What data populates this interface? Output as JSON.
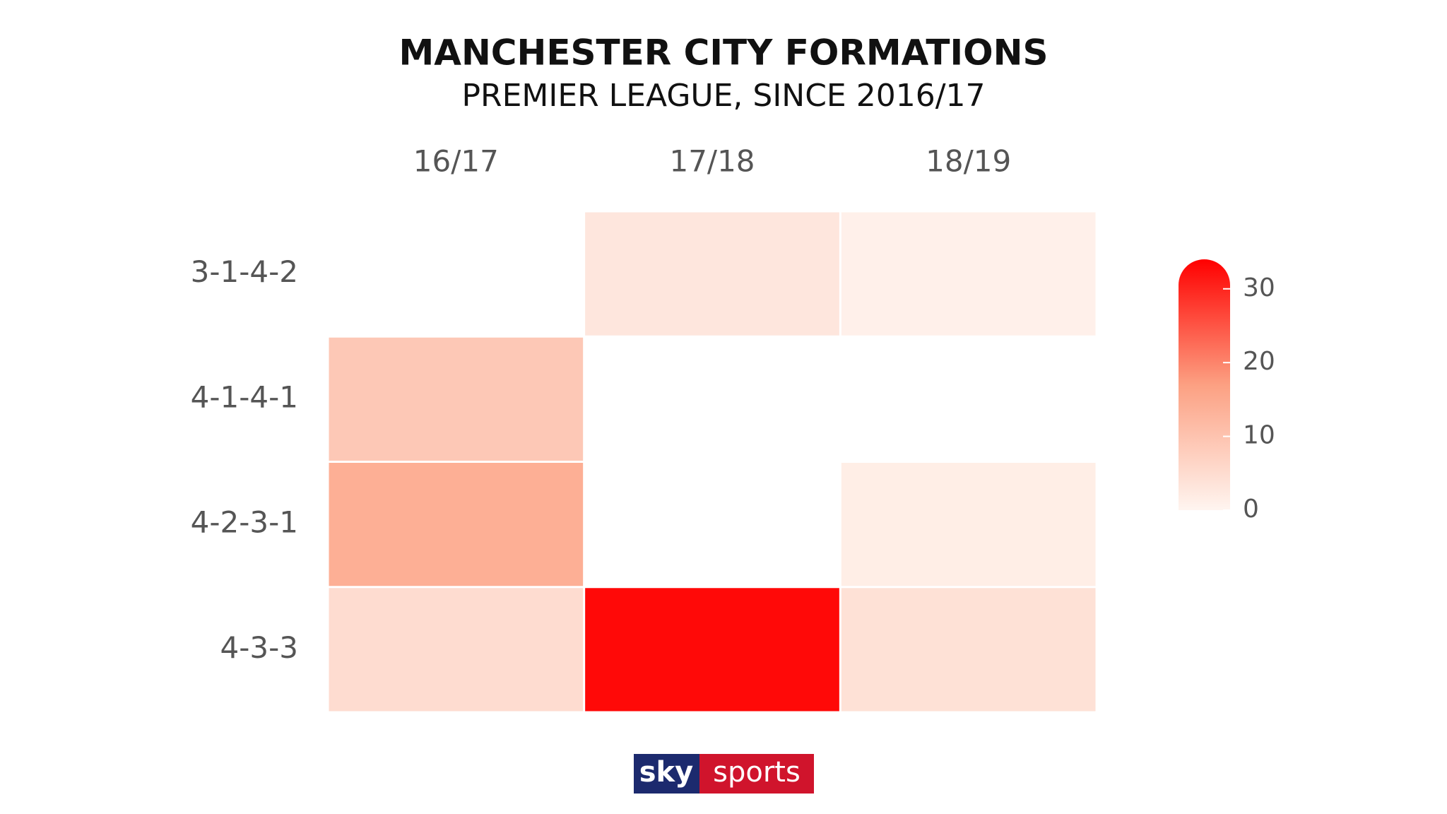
{
  "chart_data": {
    "type": "heatmap",
    "title": "MANCHESTER CITY FORMATIONS",
    "subtitle": "PREMIER LEAGUE, SINCE 2016/17",
    "x": [
      "16/17",
      "17/18",
      "18/19"
    ],
    "y": [
      "3-1-4-2",
      "4-1-4-1",
      "4-2-3-1",
      "4-3-3"
    ],
    "z": [
      [
        null,
        3,
        1
      ],
      [
        9,
        null,
        null
      ],
      [
        14,
        null,
        1.5
      ],
      [
        5,
        33,
        4
      ]
    ],
    "colorscale": [
      "#fff5f0",
      "#fca082",
      "#ff0000"
    ],
    "zlim": [
      0,
      34
    ],
    "zticks": [
      0,
      10,
      20,
      30
    ]
  },
  "logo": {
    "left": "sky",
    "right": "sports"
  }
}
